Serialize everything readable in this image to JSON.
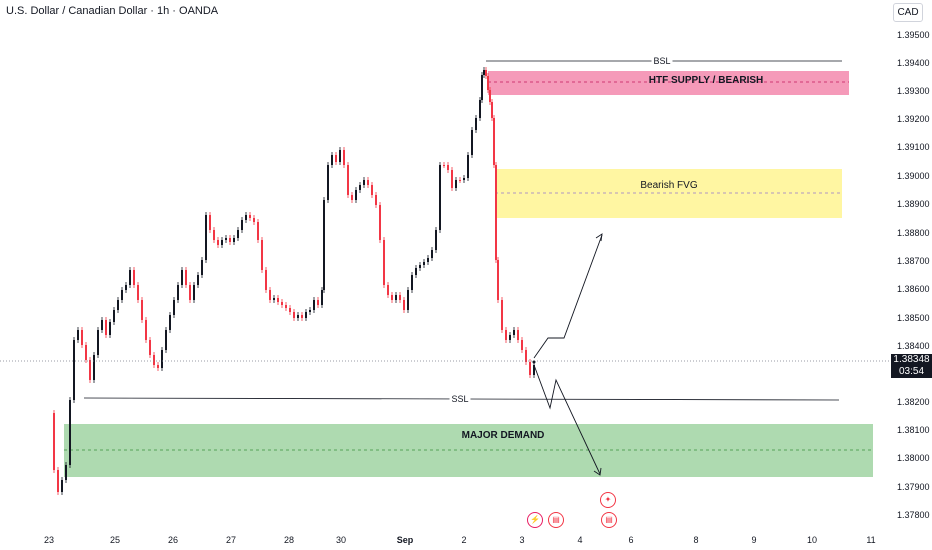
{
  "header": {
    "title": "U.S. Dollar / Canadian Dollar · 1h · OANDA",
    "currency_button": "CAD"
  },
  "price_axis": {
    "ticks": [
      "1.39500",
      "1.39400",
      "1.39300",
      "1.39200",
      "1.39100",
      "1.39000",
      "1.38900",
      "1.38800",
      "1.38700",
      "1.38600",
      "1.38500",
      "1.38400",
      "1.38200",
      "1.38100",
      "1.38000",
      "1.37900",
      "1.37800"
    ],
    "current_price": "1.38348",
    "countdown": "03:54"
  },
  "time_axis": {
    "ticks": [
      "23",
      "25",
      "26",
      "27",
      "28",
      "30",
      "Sep",
      "2",
      "3",
      "4",
      "6",
      "8",
      "9",
      "10",
      "11"
    ]
  },
  "annotations": {
    "bsl_label": "BSL",
    "ssl_label": "SSL",
    "supply_label": "HTF SUPPLY / BEARISH",
    "fvg_label": "Bearish FVG",
    "demand_label": "MAJOR DEMAND"
  },
  "colors": {
    "up_candle": "#131722",
    "down_candle": "#f23645",
    "supply_zone": "#f48fb1",
    "fvg_zone": "#fff59d",
    "demand_zone": "#a5d6a7",
    "price_tag_bg": "#131722"
  },
  "events": {
    "icons": [
      "flash-icon",
      "calendar-event-icon",
      "canada-flag-icon",
      "calendar-event-icon"
    ]
  }
}
